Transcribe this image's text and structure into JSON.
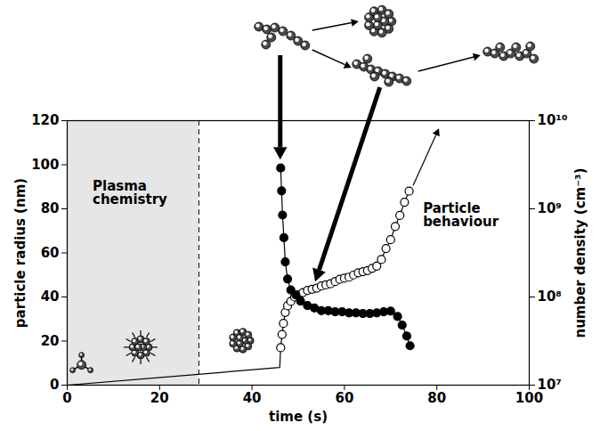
{
  "chart_data": {
    "type": "scatter",
    "xlabel": "time (s)",
    "ylabel": "particle radius (nm)",
    "y2label": "number density (cm⁻³)",
    "xlim": [
      0,
      100
    ],
    "xticks": [
      0,
      20,
      40,
      60,
      80,
      100
    ],
    "ylim": [
      0,
      120
    ],
    "yticks": [
      0,
      20,
      40,
      60,
      80,
      100,
      120
    ],
    "y2lim": [
      10000000,
      10000000000
    ],
    "y2ticks": [
      {
        "value": 10000000,
        "label": "10⁷"
      },
      {
        "value": 100000000,
        "label": "10⁸"
      },
      {
        "value": 1000000000,
        "label": "10⁹"
      },
      {
        "value": 10000000000,
        "label": "10¹⁰"
      }
    ],
    "log": "y2",
    "grid": false,
    "regions": [
      {
        "x": [
          0,
          28.5
        ],
        "line_style": "dashed",
        "color": "#e6e6e6"
      }
    ],
    "annotations": [
      {
        "text": "Plasma chemistry",
        "x": 5.5,
        "y": 87
      },
      {
        "text": "Particle behaviour",
        "x": 77,
        "y": 77
      }
    ],
    "series": [
      {
        "type": "line",
        "marker": "none",
        "line_style": "solid",
        "color": "#000000",
        "x": [
          0,
          46,
          46.2
        ],
        "values": [
          0,
          8,
          17
        ]
      },
      {
        "type": "line",
        "marker": "open circle",
        "line_style": "solid",
        "color": "#000000",
        "x": [
          46.2,
          46.5,
          46.8,
          47.2,
          47.7,
          48.4,
          49.2,
          50,
          51,
          52,
          53,
          54,
          55,
          56,
          57,
          58,
          59,
          60,
          61,
          62,
          63,
          64,
          65,
          66,
          67,
          68,
          69,
          70,
          71,
          72,
          73,
          74
        ],
        "values": [
          17,
          23,
          28,
          33,
          36,
          38,
          40,
          41,
          42,
          43,
          43.5,
          44,
          45,
          45.5,
          46,
          47,
          48,
          48.5,
          49,
          50,
          51,
          51.5,
          52,
          53,
          54,
          57,
          62,
          66,
          72,
          77,
          83,
          88
        ]
      },
      {
        "type": "line",
        "marker": "filled circle",
        "line_style": "solid",
        "color": "#000000",
        "axis": "y2",
        "x": [
          46.2,
          46.4,
          46.6,
          46.9,
          47.2,
          47.7,
          48.4,
          49.5,
          50.5,
          52,
          53.5,
          55,
          56.5,
          58,
          59.5,
          61,
          62.5,
          64,
          65.5,
          67,
          68.5,
          70,
          71.5,
          72.5,
          73.5,
          74.2
        ],
        "values": [
          2900000000,
          1600000000,
          850000000,
          470000000,
          250000000,
          160000000,
          120000000,
          105000000,
          90000000,
          80000000,
          75000000,
          70000000,
          70000000,
          68000000,
          68000000,
          66000000,
          66000000,
          65000000,
          65000000,
          66000000,
          68000000,
          69000000,
          60000000,
          48000000,
          36000000,
          28000000
        ]
      }
    ]
  }
}
